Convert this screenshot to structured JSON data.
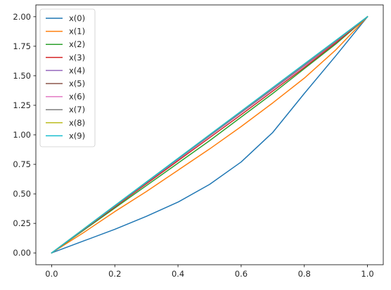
{
  "chart_data": {
    "type": "line",
    "title": "",
    "xlabel": "",
    "ylabel": "",
    "xlim": [
      -0.05,
      1.05
    ],
    "ylim": [
      -0.1,
      2.1
    ],
    "xticks": [
      "0.0",
      "0.2",
      "0.4",
      "0.6",
      "0.8",
      "1.0"
    ],
    "yticks": [
      "0.00",
      "0.25",
      "0.50",
      "0.75",
      "1.00",
      "1.25",
      "1.50",
      "1.75",
      "2.00"
    ],
    "grid": false,
    "legend_position": "upper-left",
    "x": [
      0.0,
      0.1,
      0.2,
      0.3,
      0.4,
      0.5,
      0.6,
      0.7,
      0.8,
      0.9,
      1.0
    ],
    "series": [
      {
        "name": "x(0)",
        "color": "#1f77b4",
        "values": [
          0.0,
          0.1,
          0.2,
          0.31,
          0.43,
          0.58,
          0.77,
          1.02,
          1.35,
          1.67,
          2.0
        ]
      },
      {
        "name": "x(1)",
        "color": "#ff7f0e",
        "values": [
          0.0,
          0.17,
          0.35,
          0.52,
          0.7,
          0.88,
          1.07,
          1.27,
          1.48,
          1.72,
          2.0
        ]
      },
      {
        "name": "x(2)",
        "color": "#2ca02c",
        "values": [
          0.0,
          0.19,
          0.38,
          0.57,
          0.76,
          0.95,
          1.15,
          1.35,
          1.56,
          1.77,
          2.0
        ]
      },
      {
        "name": "x(3)",
        "color": "#d62728",
        "values": [
          0.0,
          0.195,
          0.39,
          0.585,
          0.78,
          0.975,
          1.17,
          1.37,
          1.57,
          1.78,
          2.0
        ]
      },
      {
        "name": "x(4)",
        "color": "#9467bd",
        "values": [
          0.0,
          0.198,
          0.396,
          0.594,
          0.792,
          0.99,
          1.188,
          1.386,
          1.585,
          1.79,
          2.0
        ]
      },
      {
        "name": "x(5)",
        "color": "#8c564b",
        "values": [
          0.0,
          0.199,
          0.398,
          0.597,
          0.796,
          0.995,
          1.194,
          1.393,
          1.592,
          1.794,
          2.0
        ]
      },
      {
        "name": "x(6)",
        "color": "#e377c2",
        "values": [
          0.0,
          0.2,
          0.4,
          0.599,
          0.798,
          0.998,
          1.197,
          1.396,
          1.596,
          1.797,
          2.0
        ]
      },
      {
        "name": "x(7)",
        "color": "#7f7f7f",
        "values": [
          0.0,
          0.2,
          0.4,
          0.6,
          0.799,
          0.999,
          1.198,
          1.398,
          1.598,
          1.798,
          2.0
        ]
      },
      {
        "name": "x(8)",
        "color": "#bcbd22",
        "values": [
          0.0,
          0.2,
          0.4,
          0.6,
          0.8,
          1.0,
          1.199,
          1.399,
          1.599,
          1.799,
          2.0
        ]
      },
      {
        "name": "x(9)",
        "color": "#17becf",
        "values": [
          0.0,
          0.2,
          0.4,
          0.6,
          0.8,
          1.0,
          1.2,
          1.4,
          1.6,
          1.8,
          2.0
        ]
      }
    ]
  }
}
